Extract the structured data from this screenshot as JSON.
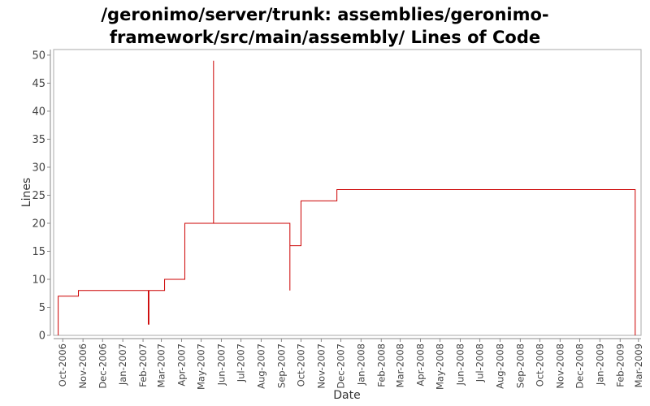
{
  "chart_data": {
    "type": "line",
    "title_lines": [
      "/geronimo/server/trunk: assemblies/geronimo-",
      "framework/src/main/assembly/ Lines of Code"
    ],
    "xlabel": "Date",
    "ylabel": "Lines",
    "ylim": [
      0,
      51
    ],
    "yticks": [
      0,
      5,
      10,
      15,
      20,
      25,
      30,
      35,
      40,
      45,
      50
    ],
    "xlim": [
      "2006-09-17",
      "2009-03-05"
    ],
    "xtick_labels": [
      {
        "label": "Oct-2006",
        "date": "2006-10-01"
      },
      {
        "label": "Nov-2006",
        "date": "2006-11-01"
      },
      {
        "label": "Dec-2006",
        "date": "2006-12-01"
      },
      {
        "label": "Jan-2007",
        "date": "2007-01-01"
      },
      {
        "label": "Feb-2007",
        "date": "2007-02-01"
      },
      {
        "label": "Mar-2007",
        "date": "2007-03-01"
      },
      {
        "label": "Apr-2007",
        "date": "2007-04-01"
      },
      {
        "label": "May-2007",
        "date": "2007-05-01"
      },
      {
        "label": "Jun-2007",
        "date": "2007-06-01"
      },
      {
        "label": "Jul-2007",
        "date": "2007-07-01"
      },
      {
        "label": "Aug-2007",
        "date": "2007-08-01"
      },
      {
        "label": "Sep-2007",
        "date": "2007-09-01"
      },
      {
        "label": "Oct-2007",
        "date": "2007-10-01"
      },
      {
        "label": "Nov-2007",
        "date": "2007-11-01"
      },
      {
        "label": "Dec-2007",
        "date": "2007-12-01"
      },
      {
        "label": "Jan-2008",
        "date": "2008-01-01"
      },
      {
        "label": "Feb-2008",
        "date": "2008-02-01"
      },
      {
        "label": "Mar-2008",
        "date": "2008-03-01"
      },
      {
        "label": "Apr-2008",
        "date": "2008-04-01"
      },
      {
        "label": "May-2008",
        "date": "2008-05-01"
      },
      {
        "label": "Jun-2008",
        "date": "2008-06-01"
      },
      {
        "label": "Jul-2008",
        "date": "2008-07-01"
      },
      {
        "label": "Aug-2008",
        "date": "2008-08-01"
      },
      {
        "label": "Sep-2008",
        "date": "2008-09-01"
      },
      {
        "label": "Oct-2008",
        "date": "2008-10-01"
      },
      {
        "label": "Nov-2008",
        "date": "2008-11-01"
      },
      {
        "label": "Dec-2008",
        "date": "2008-12-01"
      },
      {
        "label": "Jan-2009",
        "date": "2009-01-01"
      },
      {
        "label": "Feb-2009",
        "date": "2009-02-01"
      },
      {
        "label": "Mar-2009",
        "date": "2009-03-01"
      }
    ],
    "series": [
      {
        "color": "#cc0000",
        "points": [
          {
            "x": "2006-09-24",
            "y": 0
          },
          {
            "x": "2006-09-24",
            "y": 7
          },
          {
            "x": "2006-10-25",
            "y": 7
          },
          {
            "x": "2006-10-25",
            "y": 8
          },
          {
            "x": "2007-02-09",
            "y": 8
          },
          {
            "x": "2007-02-09",
            "y": 2
          },
          {
            "x": "2007-02-10",
            "y": 2
          },
          {
            "x": "2007-02-10",
            "y": 8
          },
          {
            "x": "2007-03-06",
            "y": 8
          },
          {
            "x": "2007-03-06",
            "y": 10
          },
          {
            "x": "2007-04-06",
            "y": 10
          },
          {
            "x": "2007-04-06",
            "y": 20
          },
          {
            "x": "2007-05-20",
            "y": 20
          },
          {
            "x": "2007-05-20",
            "y": 49
          },
          {
            "x": "2007-05-20",
            "y": 20
          },
          {
            "x": "2007-09-14",
            "y": 20
          },
          {
            "x": "2007-09-14",
            "y": 8
          },
          {
            "x": "2007-09-14",
            "y": 16
          },
          {
            "x": "2007-10-01",
            "y": 16
          },
          {
            "x": "2007-10-01",
            "y": 24
          },
          {
            "x": "2007-11-25",
            "y": 24
          },
          {
            "x": "2007-11-25",
            "y": 26
          },
          {
            "x": "2009-02-24",
            "y": 26
          },
          {
            "x": "2009-02-24",
            "y": 0
          }
        ]
      }
    ],
    "grid": false,
    "legend": "none"
  }
}
